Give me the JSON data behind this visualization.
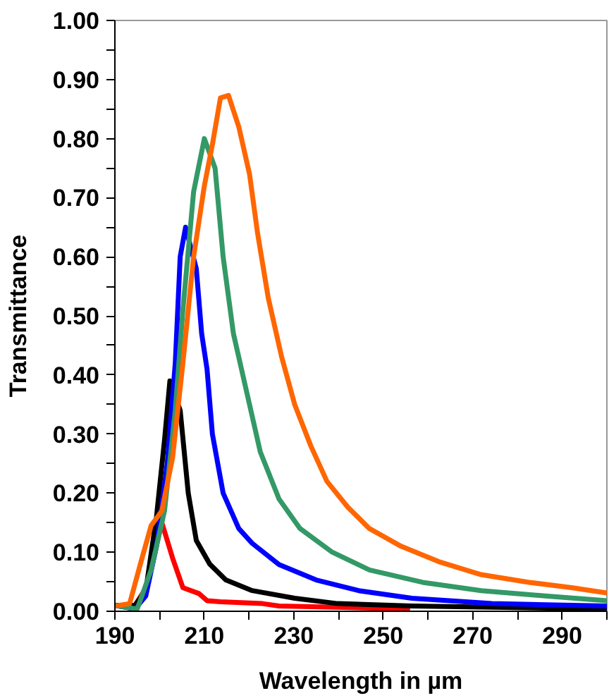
{
  "chart_data": {
    "type": "line",
    "xlabel": "Wavelength in µm",
    "ylabel": "Transmittance",
    "xlim": [
      190,
      300
    ],
    "ylim": [
      0,
      1
    ],
    "xticks": [
      190,
      {
        "value": 200,
        "label": null
      },
      210,
      {
        "value": 220,
        "label": null
      },
      230,
      {
        "value": 240,
        "label": null
      },
      250,
      {
        "value": 260,
        "label": null
      },
      270,
      {
        "value": 280,
        "label": null
      },
      290,
      {
        "value": 300,
        "label": null
      }
    ],
    "yticks": [
      {
        "value": 0,
        "label": "0.00"
      },
      {
        "value": 0.05,
        "label": null
      },
      {
        "value": 0.1,
        "label": "0.10"
      },
      {
        "value": 0.15,
        "label": null
      },
      {
        "value": 0.2,
        "label": "0.20"
      },
      {
        "value": 0.25,
        "label": null
      },
      {
        "value": 0.3,
        "label": "0.30"
      },
      {
        "value": 0.35,
        "label": null
      },
      {
        "value": 0.4,
        "label": "0.40"
      },
      {
        "value": 0.45,
        "label": null
      },
      {
        "value": 0.5,
        "label": "0.50"
      },
      {
        "value": 0.55,
        "label": null
      },
      {
        "value": 0.6,
        "label": "0.60"
      },
      {
        "value": 0.65,
        "label": null
      },
      {
        "value": 0.7,
        "label": "0.70"
      },
      {
        "value": 0.75,
        "label": null
      },
      {
        "value": 0.8,
        "label": "0.80"
      },
      {
        "value": 0.85,
        "label": null
      },
      {
        "value": 0.9,
        "label": "0.90"
      },
      {
        "value": 0.95,
        "label": null
      },
      {
        "value": 1.0,
        "label": "1.00"
      }
    ],
    "grid": false,
    "marker": "none",
    "line_style": "solid",
    "series": [
      {
        "color": "#ff0000",
        "x": [
          190,
          194.5,
          197,
          200.5,
          202.9,
          205.2,
          208.8,
          210.6,
          213.6,
          223,
          226.7,
          256
        ],
        "values": [
          0.01,
          0.01,
          0.04,
          0.15,
          0.09,
          0.04,
          0.03,
          0.018,
          0.016,
          0.013,
          0.009,
          0.004
        ]
      },
      {
        "color": "#000000",
        "x": [
          190,
          194.5,
          196.9,
          199.3,
          201.1,
          202.3,
          204.6,
          206.4,
          208.2,
          211.2,
          214.8,
          220.7,
          230.2,
          239.8,
          256.4,
          300
        ],
        "values": [
          0.01,
          0.01,
          0.035,
          0.16,
          0.29,
          0.39,
          0.34,
          0.2,
          0.12,
          0.08,
          0.053,
          0.035,
          0.022,
          0.013,
          0.009,
          0.004
        ]
      },
      {
        "color": "#0000ff",
        "x": [
          190,
          194.5,
          196.9,
          199.3,
          201.7,
          203.5,
          204.6,
          205.8,
          208.2,
          209.4,
          210.6,
          211.8,
          214.2,
          217.7,
          220.7,
          226.7,
          235,
          244.5,
          256.4,
          274.3,
          300
        ],
        "values": [
          0.01,
          0.004,
          0.026,
          0.11,
          0.25,
          0.42,
          0.6,
          0.65,
          0.58,
          0.47,
          0.41,
          0.3,
          0.2,
          0.14,
          0.115,
          0.079,
          0.053,
          0.035,
          0.022,
          0.013,
          0.009
        ]
      },
      {
        "color": "#339966",
        "x": [
          190,
          195,
          198.1,
          201.1,
          203.5,
          205.2,
          207.6,
          210,
          212.4,
          214.2,
          216.5,
          219.5,
          222.5,
          226.7,
          231.4,
          238.6,
          246.9,
          258.8,
          271.9,
          286.2,
          300
        ],
        "values": [
          0.01,
          0.004,
          0.07,
          0.17,
          0.34,
          0.51,
          0.71,
          0.8,
          0.75,
          0.6,
          0.47,
          0.37,
          0.27,
          0.19,
          0.14,
          0.1,
          0.07,
          0.049,
          0.035,
          0.026,
          0.018
        ]
      },
      {
        "color": "#ff6600",
        "x": [
          190,
          193.3,
          195.7,
          198.1,
          200.5,
          202.9,
          205.2,
          207.6,
          210,
          211.8,
          213.6,
          215.4,
          217.7,
          220.1,
          221.9,
          224.3,
          227.3,
          230.2,
          233.8,
          237.4,
          242.1,
          246.9,
          254,
          262.4,
          271.9,
          282.6,
          292.1,
          300
        ],
        "values": [
          0.009,
          0.013,
          0.08,
          0.145,
          0.17,
          0.26,
          0.42,
          0.6,
          0.72,
          0.79,
          0.869,
          0.873,
          0.82,
          0.74,
          0.64,
          0.53,
          0.43,
          0.35,
          0.28,
          0.22,
          0.176,
          0.14,
          0.11,
          0.084,
          0.062,
          0.049,
          0.04,
          0.031
        ]
      }
    ]
  }
}
